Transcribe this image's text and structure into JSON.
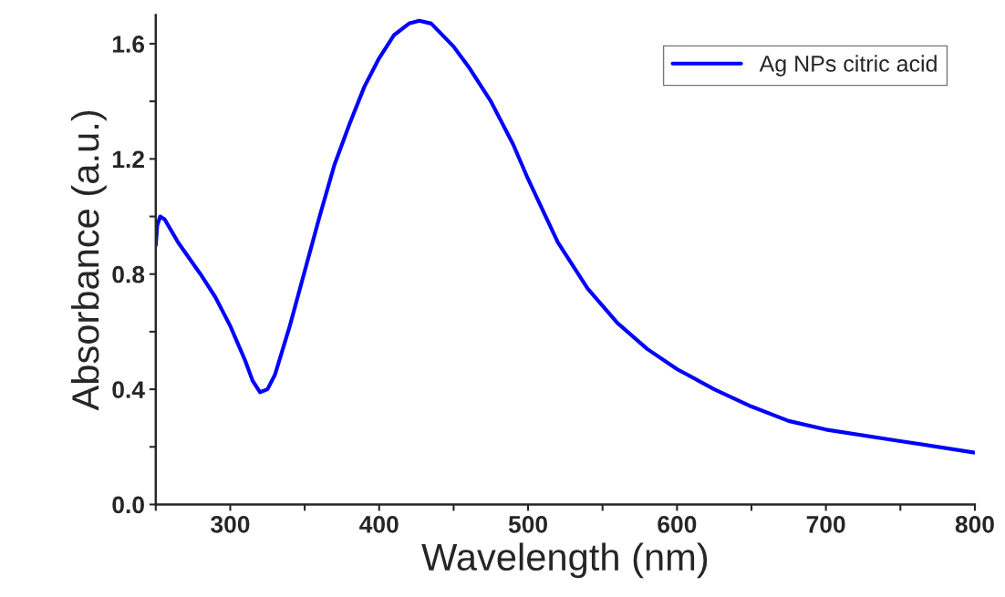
{
  "chart_data": {
    "type": "line",
    "xlabel": "Wavelength (nm)",
    "ylabel": "Absorbance (a.u.)",
    "xlim": [
      250,
      800
    ],
    "ylim": [
      0,
      1.7
    ],
    "xticks": [
      {
        "value": 250,
        "label": null
      },
      300,
      {
        "value": 350,
        "label": null
      },
      400,
      {
        "value": 450,
        "label": null
      },
      500,
      {
        "value": 550,
        "label": null
      },
      600,
      {
        "value": 650,
        "label": null
      },
      700,
      {
        "value": 750,
        "label": null
      },
      800
    ],
    "yticks": [
      {
        "value": 0,
        "label": "0.0"
      },
      {
        "value": 0.2,
        "label": null
      },
      0.4,
      {
        "value": 0.6,
        "label": null
      },
      0.8,
      {
        "value": 1.0,
        "label": null
      },
      1.2,
      {
        "value": 1.4,
        "label": null
      },
      1.6
    ],
    "grid": false,
    "legend": "top right",
    "marker": "none",
    "line_style": "solid",
    "series": [
      {
        "name": "Ag NPs citric acid",
        "color": "#0000ff",
        "x": [
          250,
          251,
          253,
          256,
          265,
          280,
          290,
          300,
          310,
          315,
          320,
          325,
          330,
          340,
          350,
          360,
          370,
          380,
          390,
          400,
          410,
          420,
          427,
          435,
          450,
          460,
          475,
          490,
          500,
          520,
          540,
          560,
          580,
          600,
          625,
          650,
          675,
          700,
          750,
          800
        ],
        "values": [
          0.9,
          0.97,
          1.0,
          0.99,
          0.91,
          0.8,
          0.72,
          0.62,
          0.5,
          0.43,
          0.39,
          0.4,
          0.45,
          0.62,
          0.81,
          1.0,
          1.18,
          1.32,
          1.45,
          1.55,
          1.63,
          1.67,
          1.68,
          1.67,
          1.59,
          1.52,
          1.4,
          1.25,
          1.13,
          0.91,
          0.75,
          0.63,
          0.54,
          0.47,
          0.4,
          0.34,
          0.29,
          0.26,
          0.22,
          0.18
        ]
      }
    ]
  }
}
